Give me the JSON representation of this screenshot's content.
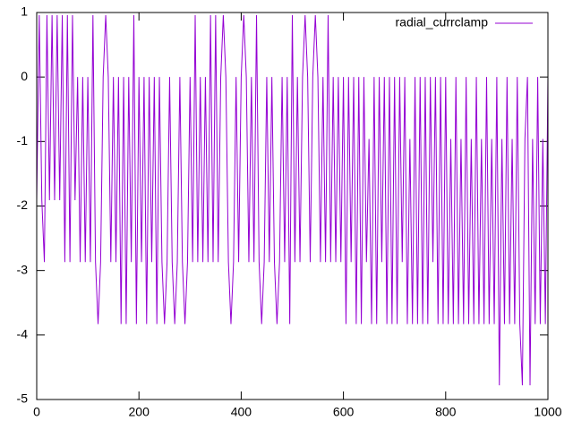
{
  "chart_data": {
    "type": "line",
    "xlim": [
      0,
      1000
    ],
    "xticks": [
      0,
      200,
      400,
      600,
      800,
      1000
    ],
    "ylim": [
      -5,
      1
    ],
    "yticks": [
      -5,
      -4,
      -3,
      -2,
      -1,
      0,
      1
    ],
    "grid": false,
    "legend": "top-right",
    "x": [
      0,
      5,
      10,
      15,
      20,
      25,
      30,
      35,
      40,
      45,
      50,
      55,
      60,
      65,
      70,
      75,
      80,
      85,
      90,
      95,
      100,
      105,
      110,
      115,
      120,
      125,
      130,
      135,
      140,
      145,
      150,
      155,
      160,
      165,
      170,
      175,
      180,
      185,
      190,
      195,
      200,
      205,
      210,
      215,
      220,
      225,
      230,
      235,
      240,
      245,
      250,
      255,
      260,
      265,
      270,
      275,
      280,
      285,
      290,
      295,
      300,
      305,
      310,
      315,
      320,
      325,
      330,
      335,
      340,
      345,
      350,
      355,
      360,
      365,
      370,
      375,
      380,
      385,
      390,
      395,
      400,
      405,
      410,
      415,
      420,
      425,
      430,
      435,
      440,
      445,
      450,
      455,
      460,
      465,
      470,
      475,
      480,
      485,
      490,
      495,
      500,
      505,
      510,
      515,
      520,
      525,
      530,
      535,
      540,
      545,
      550,
      555,
      560,
      565,
      570,
      575,
      580,
      585,
      590,
      595,
      600,
      605,
      610,
      615,
      620,
      625,
      630,
      635,
      640,
      645,
      650,
      655,
      660,
      665,
      670,
      675,
      680,
      685,
      690,
      695,
      700,
      705,
      710,
      715,
      720,
      725,
      730,
      735,
      740,
      745,
      750,
      755,
      760,
      765,
      770,
      775,
      780,
      785,
      790,
      795,
      800,
      805,
      810,
      815,
      820,
      825,
      830,
      835,
      840,
      845,
      850,
      855,
      860,
      865,
      870,
      875,
      880,
      885,
      890,
      895,
      900,
      905,
      910,
      915,
      920,
      925,
      930,
      935,
      940,
      945,
      950,
      955,
      960,
      965,
      970,
      975,
      980,
      985,
      990,
      995,
      1000
    ],
    "series": [
      {
        "name": "radial_currclamp",
        "color": "#9400d3",
        "values": [
          -1.91,
          0.96,
          -1.91,
          -2.87,
          0.96,
          -1.91,
          0.96,
          -1.91,
          0.96,
          -1.91,
          0.96,
          -2.87,
          0.96,
          -2.87,
          0.96,
          -1.91,
          0,
          -2.87,
          0,
          -2.87,
          0,
          -2.87,
          0.96,
          -2.87,
          -3.83,
          -2.87,
          0,
          0.96,
          0,
          -2.87,
          0,
          -2.87,
          0,
          -3.83,
          0,
          -3.83,
          0,
          -2.87,
          0.96,
          -3.83,
          0,
          -2.87,
          0,
          -3.83,
          0,
          -2.87,
          0,
          -3.83,
          0,
          -2.87,
          -3.83,
          -2.87,
          0,
          -2.87,
          -3.83,
          -2.87,
          0,
          -2.87,
          -3.83,
          -2.87,
          0,
          -2.87,
          0.96,
          -2.87,
          0,
          -2.87,
          0,
          -2.87,
          0.96,
          -2.87,
          0.96,
          -2.87,
          0,
          0.96,
          0,
          -2.87,
          -3.83,
          -2.87,
          0,
          -2.87,
          0,
          0.96,
          0,
          -2.87,
          0,
          -2.87,
          0.96,
          -2.87,
          -3.83,
          -2.87,
          0,
          -2.87,
          0,
          -2.87,
          -3.83,
          -2.87,
          0,
          -2.87,
          0,
          -3.83,
          0.96,
          -2.87,
          0,
          -2.87,
          0,
          0.96,
          0,
          -2.87,
          0,
          0.96,
          0,
          -2.87,
          0,
          -2.87,
          0.96,
          -2.87,
          0,
          -2.87,
          0,
          -2.87,
          0,
          -3.83,
          0,
          -2.87,
          0,
          -3.83,
          0,
          -3.83,
          0,
          -2.87,
          -0.96,
          -3.83,
          0,
          -3.83,
          0,
          -2.87,
          0,
          -3.83,
          0,
          -3.83,
          0,
          -3.83,
          0,
          -2.87,
          0,
          -3.83,
          -0.96,
          -3.83,
          0,
          -3.83,
          0,
          -3.83,
          0,
          -3.83,
          0,
          -2.87,
          0,
          -3.83,
          0,
          -3.83,
          0,
          -3.83,
          -0.96,
          -3.83,
          0,
          -3.83,
          -0.96,
          -3.83,
          0,
          -3.83,
          -0.96,
          -3.83,
          0,
          -3.83,
          -0.96,
          -3.83,
          0,
          -3.83,
          -0.96,
          -3.83,
          0,
          -4.78,
          -0.96,
          -3.83,
          0,
          -3.83,
          -0.96,
          -3.83,
          0,
          -3.83,
          -4.78,
          -0.96,
          0,
          -4.78,
          -0.96,
          -3.83,
          0,
          -3.83,
          -0.96,
          -3.83,
          0
        ]
      }
    ]
  }
}
